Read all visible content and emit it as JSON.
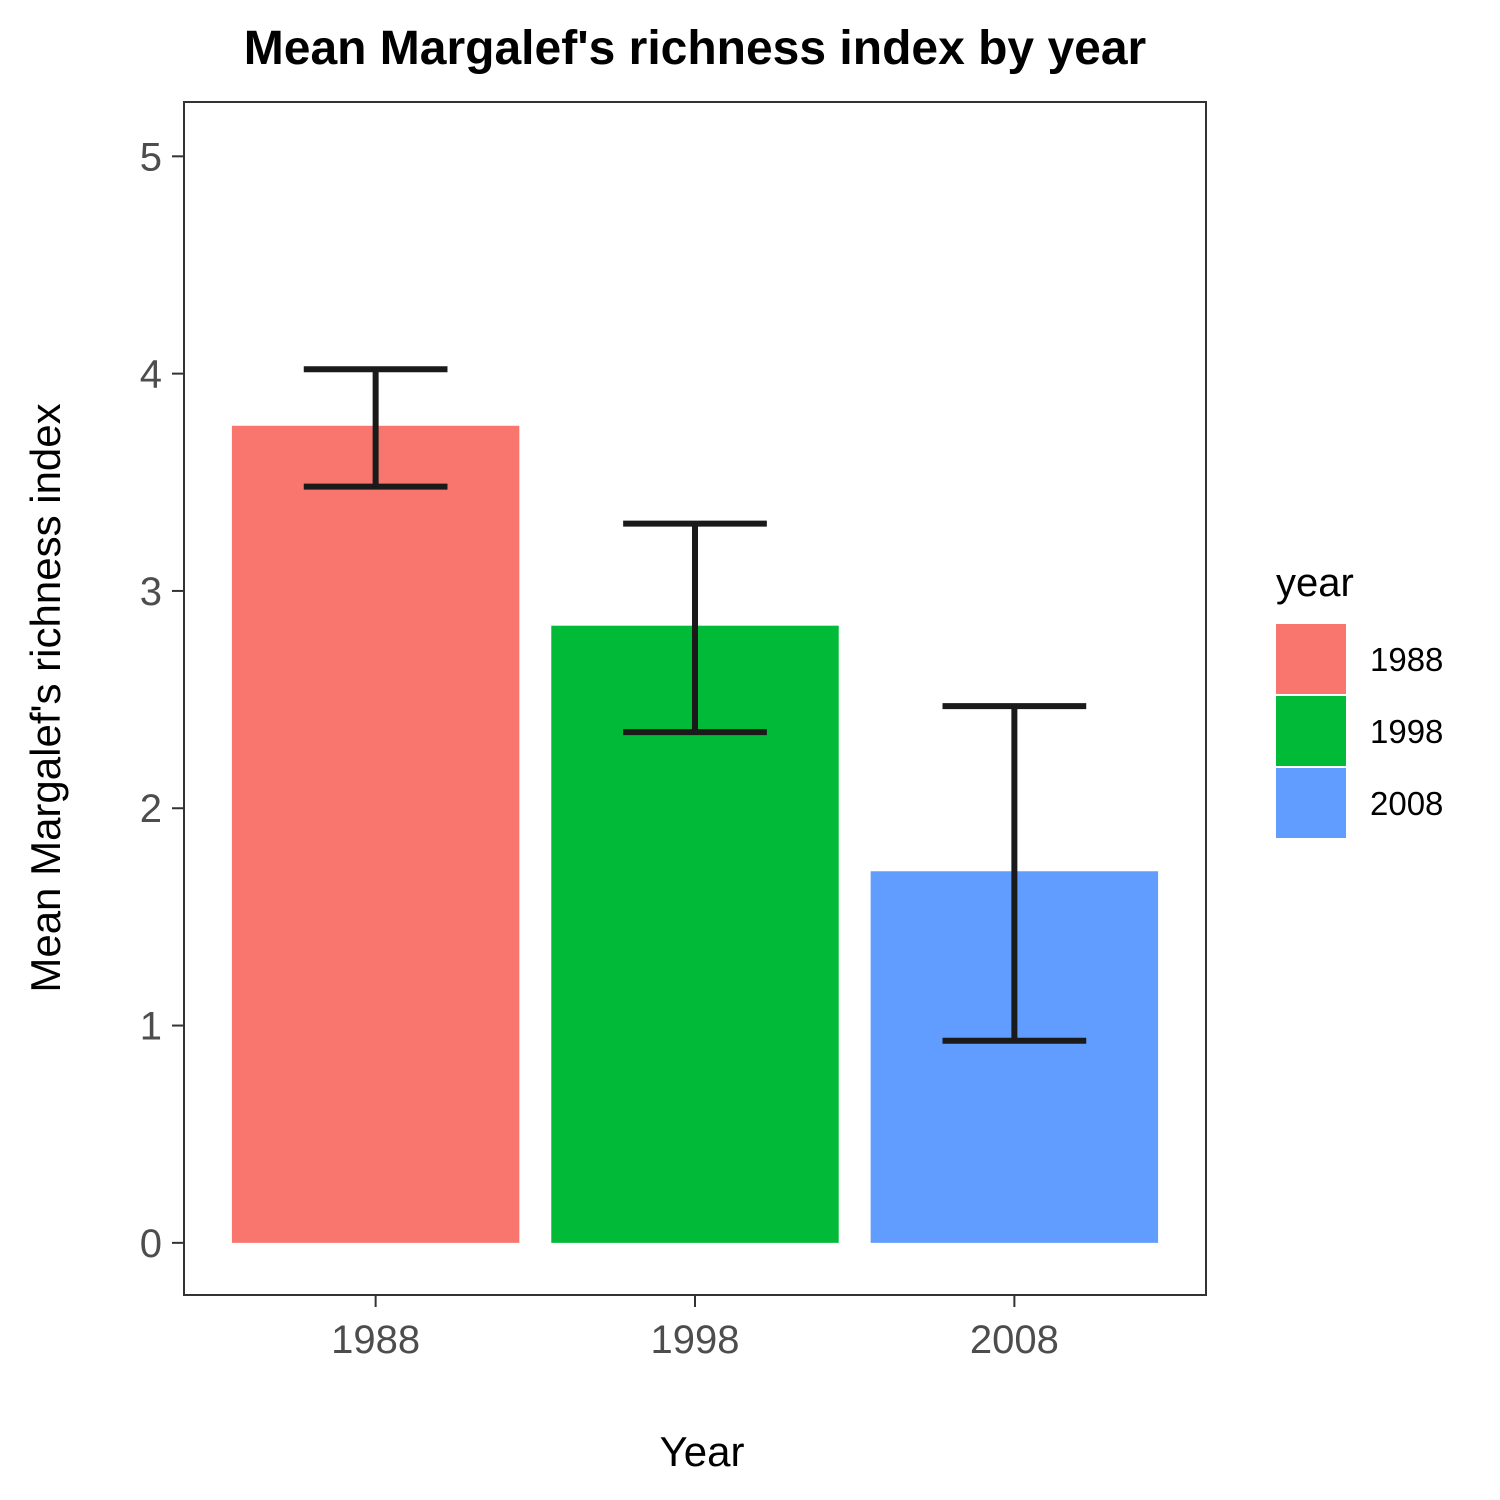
{
  "chart_data": {
    "type": "bar",
    "title": "Mean Margalef's richness index by year",
    "xlabel": "Year",
    "ylabel": "Mean Margalef's richness index",
    "categories": [
      "1988",
      "1998",
      "2008"
    ],
    "values": [
      3.76,
      2.84,
      1.71
    ],
    "error_bars": [
      {
        "low": 3.48,
        "high": 4.02
      },
      {
        "low": 2.35,
        "high": 3.31
      },
      {
        "low": 0.93,
        "high": 2.47
      }
    ],
    "colors": [
      "#F8766D",
      "#00BA38",
      "#619CFF"
    ],
    "ylim": [
      -0.24,
      5.25
    ],
    "yticks": [
      "0",
      "1",
      "2",
      "3",
      "4",
      "5"
    ],
    "grid": false,
    "legend": {
      "title": "year",
      "position": "right",
      "items": [
        "1988",
        "1998",
        "2008"
      ]
    }
  }
}
